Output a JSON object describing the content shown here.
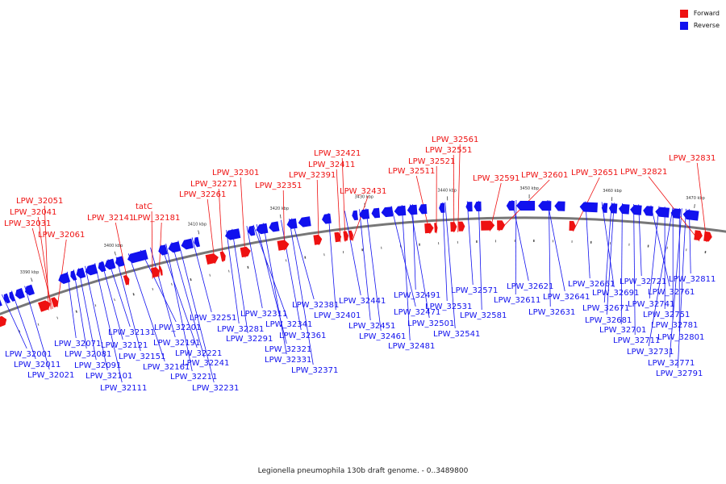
{
  "legend": {
    "forward_label": "Forward",
    "reverse_label": "Reverse"
  },
  "colors": {
    "forward": "#ee1111",
    "reverse": "#1111ee",
    "backbone": "#777777"
  },
  "caption": "Legionella pneumophila 130b draft genome. - 0..3489800",
  "genome_range": [
    "0",
    "3489800"
  ],
  "scale_ticks": [
    "3390 kbp",
    "3400 kbp",
    "3410 kbp",
    "3420 kbp",
    "3430 kbp",
    "3440 kbp",
    "3450 kbp",
    "3460 kbp",
    "3470 kbp"
  ],
  "forward_genes": [
    "LPW_32051",
    "LPW_32041",
    "LPW_32031",
    "LPW_32061",
    "LPW_32141",
    "tatC",
    "LPW_32181",
    "LPW_32301",
    "LPW_32271",
    "LPW_32261",
    "LPW_32351",
    "LPW_32421",
    "LPW_32411",
    "LPW_32391",
    "LPW_32431",
    "LPW_32561",
    "LPW_32551",
    "LPW_32521",
    "LPW_32511",
    "LPW_32591",
    "LPW_32601",
    "LPW_32651",
    "LPW_32821",
    "LPW_32831"
  ],
  "reverse_genes": [
    "LPW_32001",
    "LPW_32011",
    "LPW_32021",
    "LPW_32071",
    "LPW_32081",
    "LPW_32091",
    "LPW_32101",
    "LPW_32111",
    "LPW_32131",
    "LPW_32121",
    "LPW_32151",
    "LPW_32161",
    "LPW_32201",
    "LPW_32191",
    "LPW_32221",
    "LPW_32211",
    "LPW_32241",
    "LPW_32231",
    "LPW_32251",
    "LPW_32281",
    "LPW_32291",
    "LPW_32311",
    "LPW_32341",
    "LPW_32321",
    "LPW_32331",
    "LPW_32361",
    "LPW_32371",
    "LPW_32381",
    "LPW_32401",
    "LPW_32441",
    "LPW_32451",
    "LPW_32461",
    "LPW_32491",
    "LPW_32471",
    "LPW_32501",
    "LPW_32481",
    "LPW_32531",
    "LPW_32541",
    "LPW_32571",
    "LPW_32581",
    "LPW_32621",
    "LPW_32611",
    "LPW_32641",
    "LPW_32631",
    "LPW_32661",
    "LPW_32691",
    "LPW_32671",
    "LPW_32681",
    "LPW_32701",
    "LPW_32711",
    "LPW_32721",
    "LPW_32761",
    "LPW_32741",
    "LPW_32751",
    "LPW_32731",
    "LPW_32781",
    "LPW_32801",
    "LPW_32771",
    "LPW_32791",
    "LPW_32811"
  ]
}
